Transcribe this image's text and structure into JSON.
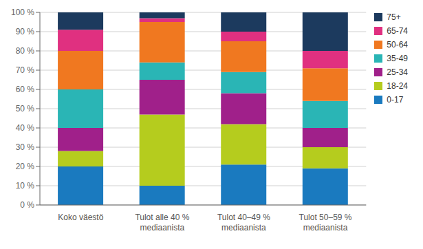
{
  "chart_data": {
    "type": "bar",
    "stacked": true,
    "grid": true,
    "legend": "right",
    "categories": [
      "Koko väestö",
      "Tulot alle 40 %\nmediaanista",
      "Tulot 40–49 %\nmediaanista",
      "Tulot 50–59 %\nmediaanista"
    ],
    "series": [
      {
        "name": "0-17",
        "color": "#1a7abf",
        "values": [
          20,
          10,
          21,
          19
        ]
      },
      {
        "name": "18-24",
        "color": "#b5cc1e",
        "values": [
          8,
          37,
          21,
          11
        ]
      },
      {
        "name": "25-34",
        "color": "#a0208a",
        "values": [
          12,
          18,
          16,
          10
        ]
      },
      {
        "name": "35-49",
        "color": "#2ab5b5",
        "values": [
          20,
          9,
          11,
          14
        ]
      },
      {
        "name": "50-64",
        "color": "#f07820",
        "values": [
          20,
          21,
          16,
          17
        ]
      },
      {
        "name": "65-74",
        "color": "#e03080",
        "values": [
          11,
          2,
          5,
          9
        ]
      },
      {
        "name": "75+",
        "color": "#1c3a5e",
        "values": [
          9,
          3,
          10,
          20
        ]
      }
    ],
    "ylim": [
      0,
      100
    ],
    "yticks": [
      {
        "value": 0,
        "label": "0 %"
      },
      {
        "value": 10,
        "label": "10 %"
      },
      {
        "value": 20,
        "label": "20 %"
      },
      {
        "value": 30,
        "label": "30 %"
      },
      {
        "value": 40,
        "label": "40 %"
      },
      {
        "value": 50,
        "label": "50 %"
      },
      {
        "value": 60,
        "label": "60 %"
      },
      {
        "value": 70,
        "label": "70 %"
      },
      {
        "value": 80,
        "label": "80 %"
      },
      {
        "value": 90,
        "label": "90 %"
      },
      {
        "value": 100,
        "label": "100 %"
      }
    ]
  }
}
